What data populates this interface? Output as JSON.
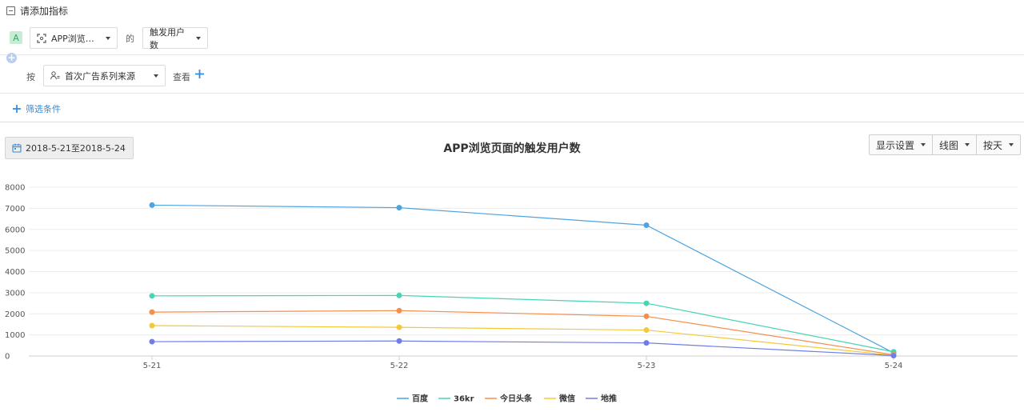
{
  "section": {
    "header_label": "请添加指标"
  },
  "metric": {
    "badge": "A",
    "event_value": "APP浏览…",
    "connector": "的",
    "measure_value": "触发用户数"
  },
  "group": {
    "label": "按",
    "value": "首次广告系列来源",
    "view_label": "查看"
  },
  "filter": {
    "label": "筛选条件"
  },
  "date_range": "2018-5-21至2018-5-24",
  "chart_title": "APP浏览页面的触发用户数",
  "toolbar": {
    "display_settings": "显示设置",
    "chart_type": "线图",
    "granularity": "按天"
  },
  "icons": {
    "collapse": "minus-square-icon",
    "add_metric": "plus-circle-icon",
    "add_group": "plus-icon",
    "add_filter": "plus-icon",
    "event": "scan-icon",
    "user_property": "user-property-icon",
    "calendar": "calendar-icon"
  },
  "colors": {
    "accent": "#2f8ae0",
    "badge_bg": "#c6ecd5",
    "badge_fg": "#3ba46a"
  },
  "chart_data": {
    "type": "line",
    "title": "",
    "xlabel": "",
    "ylabel": "",
    "categories": [
      "5-21",
      "5-22",
      "5-23",
      "5-24"
    ],
    "ylim": [
      0,
      8000
    ],
    "yticks": [
      0,
      1000,
      2000,
      3000,
      4000,
      5000,
      6000,
      7000,
      8000
    ],
    "grid": true,
    "legend_position": "bottom-center",
    "series": [
      {
        "name": "百度",
        "color": "#4ea3e0",
        "values": [
          7150,
          7030,
          6200,
          150
        ]
      },
      {
        "name": "36kr",
        "color": "#46d5b5",
        "values": [
          2850,
          2870,
          2500,
          200
        ]
      },
      {
        "name": "今日头条",
        "color": "#f58f4d",
        "values": [
          2080,
          2150,
          1880,
          60
        ]
      },
      {
        "name": "微信",
        "color": "#f3c93c",
        "values": [
          1440,
          1360,
          1230,
          30
        ]
      },
      {
        "name": "地推",
        "color": "#6f7de6",
        "values": [
          680,
          710,
          620,
          20
        ]
      }
    ]
  }
}
